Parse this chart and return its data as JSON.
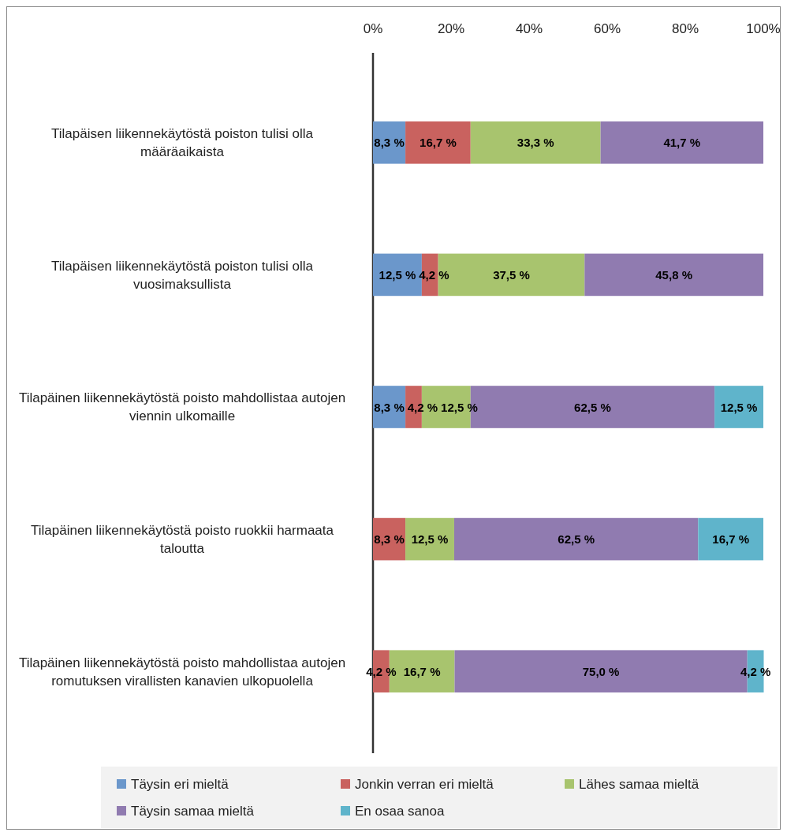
{
  "chart_data": {
    "type": "bar",
    "orientation": "horizontal",
    "stacked": true,
    "categories": [
      "Tilapäisen liikennekäytöstä poiston tulisi olla määräaikaista",
      "Tilapäisen liikennekäytöstä poiston tulisi olla vuosimaksullista",
      "Tilapäinen liikennekäytöstä poisto mahdollistaa autojen viennin ulkomaille",
      "Tilapäinen liikennekäytöstä poisto ruokkii harmaata taloutta",
      "Tilapäinen liikennekäytöstä poisto mahdollistaa autojen romutuksen virallisten kanavien ulkopuolella"
    ],
    "series": [
      {
        "name": "Täysin eri mieltä",
        "color": "#6b97cb",
        "values": [
          8.3,
          12.5,
          8.3,
          null,
          null
        ],
        "value_labels": [
          "8,3 %",
          "12,5 %",
          "8,3 %",
          null,
          null
        ]
      },
      {
        "name": "Jonkin verran eri mieltä",
        "color": "#c9625f",
        "values": [
          16.7,
          4.2,
          4.2,
          8.3,
          4.2
        ],
        "value_labels": [
          "16,7 %",
          "4,2 %",
          "4,2 %",
          "8,3 %",
          "4,2 %"
        ]
      },
      {
        "name": "Lähes samaa mieltä",
        "color": "#a8c46e",
        "values": [
          33.3,
          37.5,
          12.5,
          12.5,
          16.7
        ],
        "value_labels": [
          "33,3 %",
          "37,5 %",
          "12,5 %",
          "12,5 %",
          "16,7 %"
        ]
      },
      {
        "name": "Täysin samaa mieltä",
        "color": "#907bb0",
        "values": [
          41.7,
          45.8,
          62.5,
          62.5,
          75.0
        ],
        "value_labels": [
          "41,7 %",
          "45,8 %",
          "62,5 %",
          "62,5 %",
          "75,0 %"
        ]
      },
      {
        "name": "En osaa sanoa",
        "color": "#5fb4cb",
        "values": [
          null,
          null,
          12.5,
          16.7,
          4.2
        ],
        "value_labels": [
          null,
          null,
          "12,5 %",
          "16,7 %",
          "4,2 %"
        ]
      }
    ],
    "xlim": [
      0,
      100
    ],
    "xticks": [
      {
        "value": 0,
        "label": "0%"
      },
      {
        "value": 20,
        "label": "20%"
      },
      {
        "value": 40,
        "label": "40%"
      },
      {
        "value": 60,
        "label": "60%"
      },
      {
        "value": 80,
        "label": "80%"
      },
      {
        "value": 100,
        "label": "100%"
      }
    ],
    "legend": "bottom"
  }
}
